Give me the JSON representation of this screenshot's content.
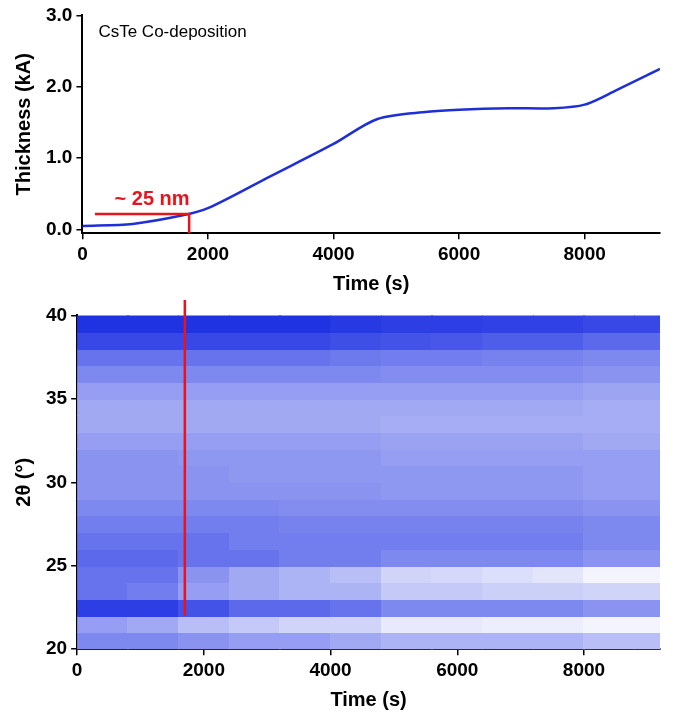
{
  "chart_data": [
    {
      "type": "line",
      "title": "CsTe Co-deposition",
      "x_label": "Time (s)",
      "y_label": "Thickness (kA)",
      "series": [
        {
          "name": "Thickness",
          "color": "#1f2fd6",
          "x": [
            0,
            800,
            1600,
            2000,
            3000,
            4000,
            4700,
            5500,
            6000,
            6800,
            7500,
            8000,
            8500,
            9200
          ],
          "values": [
            0.05,
            0.08,
            0.2,
            0.3,
            0.75,
            1.2,
            1.55,
            1.65,
            1.68,
            1.7,
            1.7,
            1.75,
            1.95,
            2.25
          ]
        }
      ],
      "xlim": [
        0,
        9200
      ],
      "xticks": [
        0,
        2000,
        4000,
        6000,
        8000
      ],
      "ylim": [
        -0.05,
        3.0
      ],
      "yticks": [
        {
          "value": 0,
          "label": "0.0"
        },
        {
          "value": 1,
          "label": "1.0"
        },
        {
          "value": 2,
          "label": "2.0"
        },
        {
          "value": 3,
          "label": "3.0"
        }
      ],
      "grid": false,
      "annotation": {
        "text": "~ 25 nm",
        "color": "#e8131b",
        "x_start": 200,
        "x": 1700,
        "y": 0.22
      }
    },
    {
      "type": "heatmap",
      "x_label": "Time (s)",
      "y_label": "2θ (°)",
      "xlim": [
        0,
        9200
      ],
      "xticks": [
        0,
        2000,
        4000,
        6000,
        8000
      ],
      "ylim": [
        20,
        40
      ],
      "yticks": [
        20,
        25,
        30,
        35,
        40
      ],
      "grid": false,
      "x_edges": [
        0,
        800,
        1600,
        2400,
        3200,
        4000,
        4800,
        5600,
        6400,
        7200,
        8000,
        8800,
        9200
      ],
      "y_edges": [
        20,
        21,
        22,
        23,
        24,
        25,
        26,
        27,
        28,
        29,
        30,
        31,
        32,
        33,
        34,
        35,
        36,
        37,
        38,
        39,
        40
      ],
      "cells": [
        [
          0.45,
          0.45,
          0.5,
          0.55,
          0.55,
          0.6,
          0.65,
          0.65,
          0.65,
          0.65,
          0.7,
          0.7
        ],
        [
          0.55,
          0.6,
          0.7,
          0.75,
          0.8,
          0.8,
          0.9,
          0.9,
          0.92,
          0.92,
          0.95,
          0.95
        ],
        [
          0.1,
          0.1,
          0.2,
          0.3,
          0.3,
          0.35,
          0.45,
          0.45,
          0.45,
          0.45,
          0.5,
          0.5
        ],
        [
          0.35,
          0.4,
          0.55,
          0.6,
          0.65,
          0.65,
          0.75,
          0.75,
          0.78,
          0.78,
          0.8,
          0.8
        ],
        [
          0.35,
          0.35,
          0.5,
          0.6,
          0.65,
          0.7,
          0.8,
          0.82,
          0.85,
          0.88,
          0.95,
          0.95
        ],
        [
          0.3,
          0.3,
          0.35,
          0.35,
          0.4,
          0.4,
          0.45,
          0.45,
          0.45,
          0.45,
          0.5,
          0.5
        ],
        [
          0.35,
          0.35,
          0.35,
          0.4,
          0.4,
          0.4,
          0.4,
          0.4,
          0.4,
          0.4,
          0.45,
          0.45
        ],
        [
          0.4,
          0.4,
          0.4,
          0.4,
          0.42,
          0.42,
          0.42,
          0.42,
          0.42,
          0.42,
          0.45,
          0.45
        ],
        [
          0.45,
          0.45,
          0.45,
          0.45,
          0.47,
          0.47,
          0.47,
          0.47,
          0.47,
          0.47,
          0.5,
          0.5
        ],
        [
          0.5,
          0.5,
          0.5,
          0.5,
          0.5,
          0.5,
          0.52,
          0.52,
          0.52,
          0.52,
          0.55,
          0.55
        ],
        [
          0.5,
          0.5,
          0.5,
          0.52,
          0.52,
          0.52,
          0.52,
          0.52,
          0.52,
          0.52,
          0.55,
          0.55
        ],
        [
          0.5,
          0.5,
          0.52,
          0.52,
          0.52,
          0.52,
          0.55,
          0.55,
          0.55,
          0.55,
          0.55,
          0.55
        ],
        [
          0.55,
          0.55,
          0.55,
          0.55,
          0.55,
          0.55,
          0.57,
          0.57,
          0.57,
          0.57,
          0.6,
          0.6
        ],
        [
          0.6,
          0.6,
          0.6,
          0.6,
          0.6,
          0.6,
          0.62,
          0.62,
          0.62,
          0.62,
          0.62,
          0.62
        ],
        [
          0.6,
          0.6,
          0.6,
          0.6,
          0.6,
          0.6,
          0.6,
          0.6,
          0.6,
          0.6,
          0.62,
          0.62
        ],
        [
          0.55,
          0.55,
          0.55,
          0.55,
          0.55,
          0.55,
          0.55,
          0.55,
          0.55,
          0.55,
          0.58,
          0.58
        ],
        [
          0.45,
          0.45,
          0.45,
          0.45,
          0.45,
          0.45,
          0.47,
          0.47,
          0.47,
          0.47,
          0.5,
          0.5
        ],
        [
          0.35,
          0.35,
          0.35,
          0.35,
          0.35,
          0.38,
          0.4,
          0.4,
          0.42,
          0.42,
          0.45,
          0.45
        ],
        [
          0.15,
          0.15,
          0.15,
          0.15,
          0.15,
          0.18,
          0.2,
          0.22,
          0.25,
          0.25,
          0.3,
          0.3
        ],
        [
          0.05,
          0.05,
          0.05,
          0.05,
          0.05,
          0.08,
          0.1,
          0.1,
          0.12,
          0.12,
          0.15,
          0.15
        ]
      ],
      "colorbar_range": [
        0,
        1
      ],
      "marker_line": {
        "color": "#e8131b",
        "x": 1700,
        "y_start": 22
      }
    }
  ]
}
